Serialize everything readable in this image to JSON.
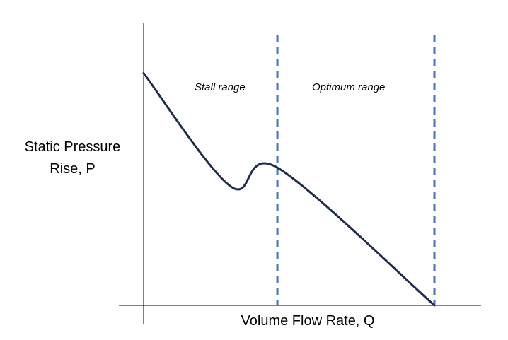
{
  "chart_data": {
    "type": "line",
    "title": "",
    "xlabel": "Volume Flow Rate, Q",
    "ylabel_lines": [
      "Static Pressure",
      "Rise, P"
    ],
    "regions": [
      {
        "label": "Stall range"
      },
      {
        "label": "Optimum range"
      }
    ],
    "series": [
      {
        "color": "#1f2d4d",
        "points": [
          {
            "x": 0.0,
            "y": 0.86
          },
          {
            "x": 0.3,
            "y": 0.44
          },
          {
            "x": 0.46,
            "y": 0.51
          },
          {
            "x": 1.0,
            "y": 0.0
          }
        ]
      }
    ],
    "vertical_markers": [
      {
        "x": 0.46,
        "color": "#4472c4",
        "style": "dashed"
      },
      {
        "x": 1.0,
        "color": "#4472c4",
        "style": "dashed"
      }
    ],
    "xlim": [
      0,
      1
    ],
    "ylim": [
      0,
      1
    ],
    "axis_ticks": false,
    "grid": false
  }
}
